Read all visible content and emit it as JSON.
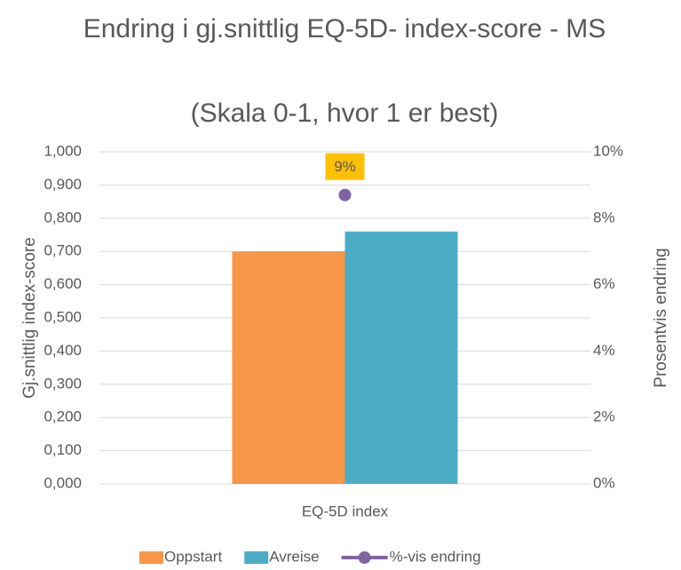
{
  "chart_data": {
    "type": "bar",
    "title": "Endring i gj.snittlig EQ-5D- index-score - MS",
    "subtitle": "(Skala 0-1, hvor 1 er best)",
    "ylabel": "Gj.snittlig index-score",
    "y2label": "Prosentvis endring",
    "categories": [
      "EQ-5D index"
    ],
    "series": [
      {
        "name": "Oppstart",
        "color": "#f79646",
        "values": [
          0.7
        ]
      },
      {
        "name": "Avreise",
        "color": "#4bacc6",
        "values": [
          0.76
        ]
      },
      {
        "name": "%-vis endring",
        "color": "#8064a2",
        "type": "line",
        "axis": "y2",
        "values": [
          8.7
        ],
        "value_labels": [
          "9%"
        ],
        "label_color": "#ffc000"
      }
    ],
    "ylim": [
      0,
      1
    ],
    "yticks": [
      {
        "value": 0,
        "label": "0,000"
      },
      {
        "value": 0.1,
        "label": "0,100"
      },
      {
        "value": 0.2,
        "label": "0,200"
      },
      {
        "value": 0.3,
        "label": "0,300"
      },
      {
        "value": 0.4,
        "label": "0,400"
      },
      {
        "value": 0.5,
        "label": "0,500"
      },
      {
        "value": 0.6,
        "label": "0,600"
      },
      {
        "value": 0.7,
        "label": "0,700"
      },
      {
        "value": 0.8,
        "label": "0,800"
      },
      {
        "value": 0.9,
        "label": "0,900"
      },
      {
        "value": 1,
        "label": "1,000"
      }
    ],
    "y2lim": [
      0,
      10
    ],
    "y2ticks": [
      {
        "value": 0,
        "label": "0%"
      },
      {
        "value": 2,
        "label": "2%"
      },
      {
        "value": 4,
        "label": "4%"
      },
      {
        "value": 6,
        "label": "6%"
      },
      {
        "value": 8,
        "label": "8%"
      },
      {
        "value": 10,
        "label": "10%"
      }
    ],
    "grid": true,
    "legend": "bottom"
  }
}
